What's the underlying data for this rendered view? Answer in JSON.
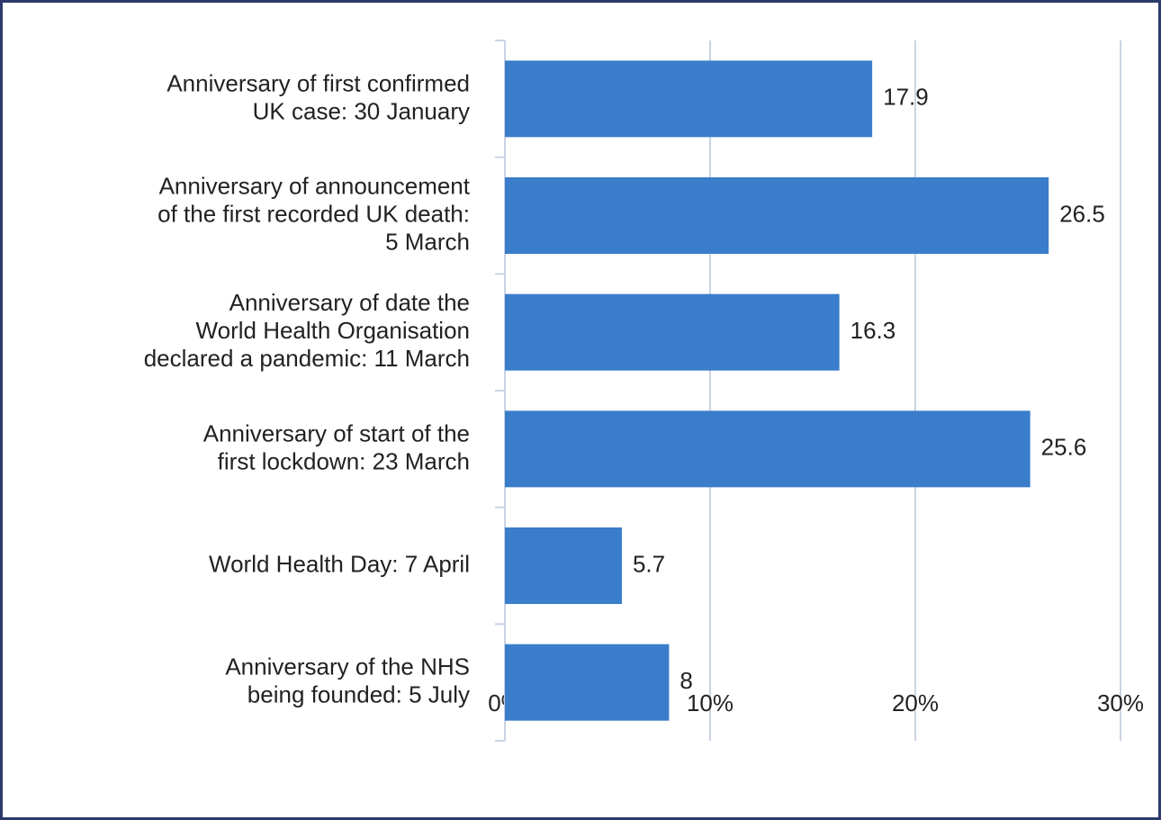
{
  "chart_data": {
    "type": "bar",
    "orientation": "horizontal",
    "categories": [
      "Anniversary of first confirmed\nUK case: 30 January",
      "Anniversary of announcement\nof the first recorded UK death:\n5 March",
      "Anniversary of date the\nWorld Health Organisation\ndeclared a pandemic: 11 March",
      "Anniversary of start of the\nfirst lockdown: 23 March",
      "World Health Day: 7 April",
      "Anniversary of the NHS\nbeing founded: 5 July"
    ],
    "values": [
      17.9,
      26.5,
      16.3,
      25.6,
      5.7,
      8
    ],
    "color": "#3a7dca",
    "xlim": [
      0,
      30
    ],
    "xticks": [
      {
        "value": 0,
        "label": "0%"
      },
      {
        "value": 10,
        "label": "10%"
      },
      {
        "value": 20,
        "label": "20%"
      },
      {
        "value": 30,
        "label": "30%"
      }
    ],
    "grid": true
  }
}
